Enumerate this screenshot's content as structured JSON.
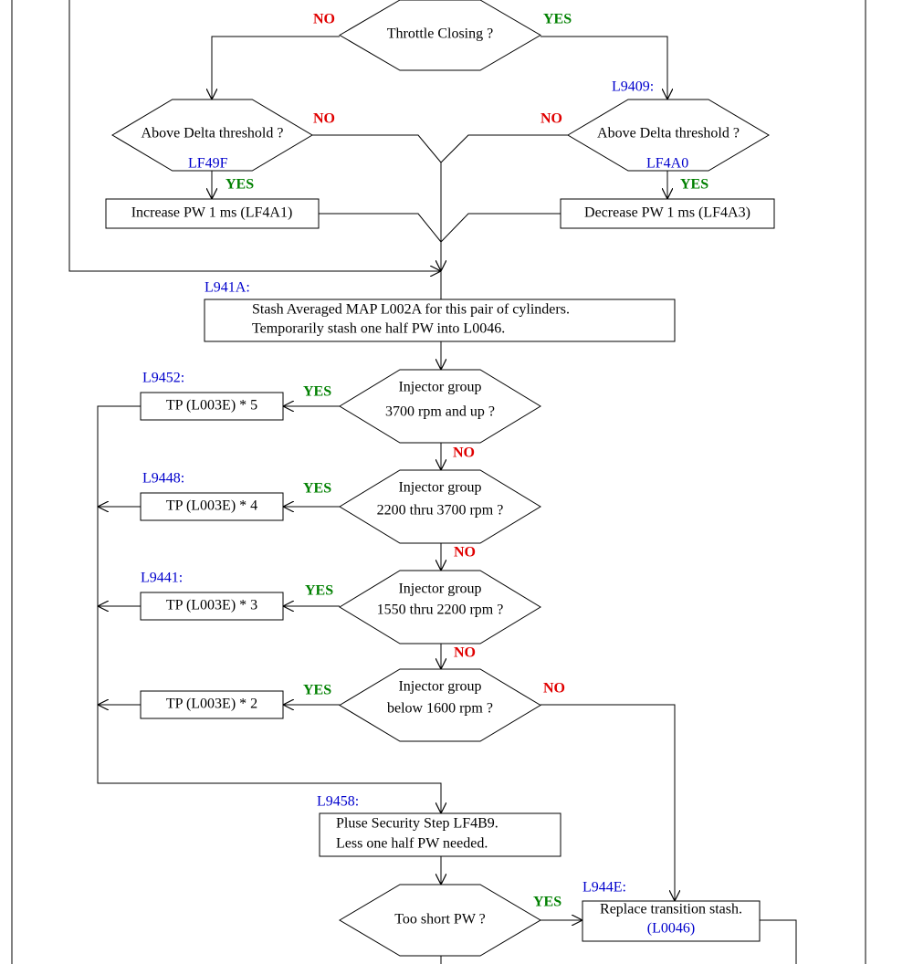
{
  "decisions": [
    {
      "lines": [
        "Throttle Closing ?"
      ]
    },
    {
      "lines": [
        "Above Delta threshold ?"
      ]
    },
    {
      "lines": [
        "Above Delta threshold ?"
      ]
    },
    {
      "lines": [
        "Injector group",
        "3700 rpm and up ?"
      ]
    },
    {
      "lines": [
        "Injector group",
        "2200 thru 3700 rpm ?"
      ]
    },
    {
      "lines": [
        "Injector group",
        "1550 thru 2200 rpm ?"
      ]
    },
    {
      "lines": [
        "Injector group",
        "below 1600 rpm ?"
      ]
    },
    {
      "lines": [
        "Too short PW ?"
      ]
    }
  ],
  "boxes": [
    {
      "lines": [
        "Increase PW 1 ms (LF4A1)"
      ]
    },
    {
      "lines": [
        "Decrease PW 1 ms (LF4A3)"
      ]
    },
    {
      "lines": [
        "Stash Averaged MAP L002A for this pair of cylinders.",
        "Temporarily stash one half PW into L0046."
      ]
    },
    {
      "lines": [
        "TP (L003E) * 5"
      ]
    },
    {
      "lines": [
        "TP (L003E) * 4"
      ]
    },
    {
      "lines": [
        "TP (L003E) * 3"
      ]
    },
    {
      "lines": [
        "TP (L003E) * 2"
      ]
    },
    {
      "lines": [
        "Pluse Security Step LF4B9.",
        "Less one half PW needed."
      ]
    },
    {
      "lines": [
        "Replace transition stash.",
        "(L0046)"
      ]
    }
  ],
  "labels": [
    "L9409:",
    "LF49F",
    "LF4A0",
    "L941A:",
    "L9452:",
    "L9448:",
    "L9441:",
    "L9458:",
    "L944E:"
  ],
  "branches": [
    "NO",
    "YES",
    "NO",
    "NO",
    "YES",
    "YES",
    "YES",
    "NO",
    "YES",
    "NO",
    "YES",
    "NO",
    "YES",
    "NO",
    "YES"
  ]
}
